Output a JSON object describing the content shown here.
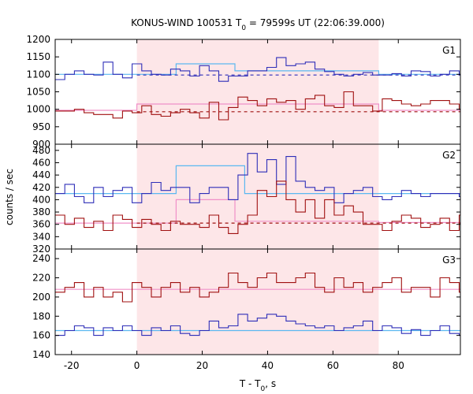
{
  "chart_data": {
    "type": "line",
    "title_prefix": "KONUS-WIND 100531 T",
    "title_sub": "0",
    "title_suffix": " = 79599s UT (22:06:39.000)",
    "xlabel_prefix": "T - T",
    "xlabel_sub": "0",
    "xlabel_suffix": ", s",
    "ylabel": "counts / sec",
    "xlim": [
      -25,
      99
    ],
    "xticks": [
      -20,
      0,
      20,
      40,
      60,
      80
    ],
    "highlight_interval": [
      0,
      74
    ],
    "colors": {
      "high_series": "#2e2eb8",
      "low_series": "#a01010",
      "high_fit": "#5bb8f0",
      "low_fit": "#f090c8",
      "highlight": "#fde6e8"
    },
    "panels": [
      {
        "label": "G1",
        "ylim": [
          900,
          1200
        ],
        "yticks": [
          900,
          950,
          1000,
          1050,
          1100,
          1150,
          1200
        ],
        "high_series": {
          "x_start": -25,
          "bin_width": 2.944,
          "values": [
            1085,
            1100,
            1110,
            1100,
            1098,
            1135,
            1100,
            1090,
            1130,
            1110,
            1100,
            1098,
            1115,
            1110,
            1095,
            1125,
            1110,
            1080,
            1095,
            1095,
            1110,
            1110,
            1120,
            1148,
            1125,
            1130,
            1135,
            1115,
            1108,
            1100,
            1095,
            1100,
            1105,
            1098,
            1098,
            1102,
            1095,
            1110,
            1108,
            1095,
            1100,
            1110,
            1098,
            1105,
            1100,
            1105,
            1080,
            1095,
            1098,
            1100,
            1110,
            1100,
            1100,
            1100,
            1080,
            1095,
            1095,
            1100,
            1100,
            1102,
            1098,
            1090,
            1075,
            1095,
            1098,
            1100,
            1100,
            1102,
            1090,
            1100,
            1102,
            1110,
            1100,
            1098,
            1100,
            1090,
            1100,
            1100,
            1105,
            1100,
            1100,
            1095,
            1098,
            1110,
            1098,
            1108,
            1120,
            1100,
            1095,
            1090,
            1100,
            1098,
            1100,
            1110,
            1100,
            1095,
            1108,
            1100,
            1080,
            1095,
            1115,
            1070,
            1100,
            1098,
            1098,
            1100,
            1100,
            1110,
            1100,
            1100,
            1105,
            1100,
            1100,
            1098,
            1100,
            1100,
            1100,
            1100,
            1100,
            1100,
            1100,
            1100,
            1100,
            1100
          ]
        },
        "high_level_before": 1100,
        "high_level_after": 1100,
        "high_fit_segments": [
          [
            -25,
            0,
            1100
          ],
          [
            0,
            12,
            1100
          ],
          [
            12,
            30,
            1130
          ],
          [
            30,
            74,
            1110
          ],
          [
            74,
            99,
            1100
          ]
        ],
        "high_dashed": [
          [
            0,
            99,
            1098
          ]
        ],
        "low_series": {
          "x_start": -25,
          "bin_width": 2.944,
          "values": [
            995,
            995,
            1000,
            990,
            985,
            985,
            975,
            995,
            990,
            1010,
            985,
            980,
            990,
            1000,
            990,
            975,
            1020,
            970,
            1005,
            1035,
            1025,
            1010,
            1030,
            1020,
            1025,
            1000,
            1030,
            1040,
            1010,
            1005,
            1050,
            1010,
            1010,
            995,
            1030,
            1025,
            1015,
            1010,
            1015,
            1025,
            1025,
            1015,
            1000,
            1020,
            990,
            1005,
            1025,
            1000,
            1020,
            1010,
            1030,
            995,
            995,
            1005,
            990,
            1000,
            1020,
            1020,
            1000,
            1005,
            1020,
            1000,
            1025,
            1025,
            1015,
            1005,
            1010,
            1020,
            1005,
            1010,
            1005,
            1000,
            1000,
            990,
            995,
            995,
            985,
            975,
            990,
            1000,
            990,
            1000,
            985,
            980,
            1005,
            995,
            990,
            1005,
            1005,
            995,
            1000,
            995,
            990,
            985,
            1000,
            1000,
            1000,
            990,
            1000,
            990,
            1000,
            995,
            1000,
            1000,
            1000,
            1000,
            1000,
            1000,
            1000,
            1000,
            1000,
            1000,
            1000,
            1000,
            1000,
            1000,
            1000,
            1000,
            1000,
            1000,
            1000,
            1000,
            1000,
            1000
          ]
        },
        "low_fit_segments": [
          [
            -25,
            0,
            997
          ],
          [
            0,
            74,
            1015
          ],
          [
            74,
            99,
            997
          ]
        ],
        "low_dashed": [
          [
            0,
            99,
            993
          ]
        ]
      },
      {
        "label": "G2",
        "ylim": [
          320,
          490
        ],
        "yticks": [
          320,
          340,
          360,
          380,
          400,
          420,
          440,
          460,
          480
        ],
        "high_series": {
          "x_start": -25,
          "bin_width": 2.944,
          "values": [
            410,
            425,
            405,
            395,
            420,
            405,
            415,
            420,
            395,
            410,
            428,
            415,
            420,
            420,
            395,
            410,
            420,
            420,
            400,
            440,
            475,
            445,
            465,
            425,
            470,
            430,
            420,
            415,
            420,
            395,
            410,
            415,
            420,
            405,
            400,
            405,
            415,
            410,
            405,
            410,
            410,
            410,
            405,
            415,
            400,
            405,
            410,
            410,
            420,
            400,
            415,
            410,
            390,
            420,
            410,
            405,
            410,
            395,
            410,
            405,
            410,
            415,
            400,
            405,
            410,
            410,
            415,
            410,
            405,
            410,
            410,
            400,
            430,
            410,
            405,
            425,
            410,
            410,
            405,
            410,
            410,
            410,
            415,
            410,
            410,
            410,
            415,
            410,
            405,
            410,
            410,
            410,
            410,
            410,
            410,
            410,
            410,
            410,
            410,
            410,
            410,
            410,
            410,
            410,
            410,
            410,
            410,
            410,
            410,
            410,
            410,
            410,
            410,
            410,
            410,
            410,
            410,
            410,
            410,
            410
          ]
        },
        "high_fit_segments": [
          [
            -25,
            0,
            410
          ],
          [
            0,
            12,
            410
          ],
          [
            12,
            33,
            455
          ],
          [
            33,
            74,
            410
          ],
          [
            74,
            99,
            410
          ]
        ],
        "low_series": {
          "x_start": -25,
          "bin_width": 2.944,
          "values": [
            375,
            360,
            370,
            355,
            365,
            350,
            375,
            368,
            355,
            368,
            360,
            350,
            365,
            360,
            360,
            355,
            375,
            355,
            345,
            360,
            375,
            415,
            405,
            430,
            400,
            380,
            400,
            370,
            400,
            375,
            390,
            380,
            360,
            360,
            350,
            365,
            375,
            370,
            355,
            360,
            370,
            350,
            375,
            365,
            360,
            365,
            375,
            355,
            370,
            380,
            360,
            375,
            355,
            365,
            365,
            365,
            360,
            370,
            360,
            350,
            365,
            360,
            355,
            365,
            370,
            355,
            360,
            370,
            355,
            365,
            360,
            350,
            355,
            350,
            345,
            355,
            365,
            360,
            350,
            365,
            375,
            355,
            365,
            375,
            350,
            360,
            345,
            360,
            350,
            360,
            355,
            340,
            360,
            365,
            350,
            355,
            350,
            360,
            355,
            360,
            360,
            360,
            360,
            360,
            360,
            360,
            360,
            360,
            360,
            360,
            360,
            360,
            360,
            360,
            360,
            360,
            360,
            360,
            360,
            360
          ]
        },
        "low_fit_segments": [
          [
            -25,
            0,
            362
          ],
          [
            0,
            12,
            362
          ],
          [
            12,
            30,
            400
          ],
          [
            30,
            74,
            365
          ],
          [
            74,
            99,
            363
          ]
        ],
        "low_dashed": [
          [
            0,
            99,
            362
          ]
        ]
      },
      {
        "label": "G3",
        "ylim": [
          140,
          250
        ],
        "yticks": [
          140,
          160,
          180,
          200,
          220,
          240
        ],
        "high_series": {
          "x_start": -25,
          "bin_width": 2.944,
          "values": [
            160,
            165,
            170,
            168,
            160,
            168,
            165,
            170,
            165,
            160,
            168,
            165,
            170,
            162,
            160,
            165,
            175,
            168,
            170,
            182,
            175,
            178,
            182,
            180,
            175,
            172,
            170,
            168,
            170,
            165,
            168,
            170,
            175,
            165,
            170,
            168,
            162,
            166,
            160,
            165,
            170,
            162,
            160,
            168,
            165,
            175,
            172,
            170,
            168,
            165,
            178,
            170,
            168,
            160,
            165,
            170,
            165,
            170,
            168,
            165,
            165,
            170,
            165,
            160,
            168,
            170,
            165,
            160,
            168,
            165,
            162,
            165,
            170,
            165,
            160,
            168,
            165,
            165,
            170,
            165,
            168,
            165,
            165,
            170,
            165,
            168,
            165,
            165,
            165,
            165,
            165,
            165,
            165,
            165,
            165,
            165,
            165,
            165,
            165,
            165,
            165,
            165,
            165,
            165,
            165,
            165,
            165,
            165,
            165,
            165,
            165,
            165,
            165,
            165,
            165,
            165,
            165,
            165,
            165,
            165
          ]
        },
        "high_fit_segments": [
          [
            -25,
            99,
            165
          ]
        ],
        "low_series": {
          "x_start": -25,
          "bin_width": 2.944,
          "values": [
            205,
            210,
            215,
            200,
            210,
            200,
            205,
            195,
            215,
            210,
            200,
            210,
            215,
            205,
            210,
            200,
            205,
            210,
            225,
            215,
            210,
            220,
            225,
            215,
            215,
            220,
            225,
            210,
            205,
            220,
            210,
            215,
            205,
            210,
            215,
            220,
            205,
            210,
            210,
            200,
            220,
            215,
            205,
            210,
            215,
            205,
            210,
            215,
            220,
            210,
            205,
            210,
            215,
            200,
            210,
            220,
            210,
            205,
            215,
            220,
            210,
            200,
            205,
            210,
            215,
            205,
            210,
            205,
            215,
            220,
            210,
            205,
            236,
            215,
            210,
            205,
            210,
            208,
            210,
            212,
            208,
            210,
            208,
            208,
            210,
            208,
            208,
            210,
            208,
            208,
            208,
            208,
            208,
            208,
            208,
            208,
            208,
            208,
            208,
            208,
            208,
            208,
            208,
            208,
            208,
            208,
            208,
            208,
            208,
            208,
            208,
            208,
            208,
            208,
            208,
            208,
            208,
            208,
            208,
            208
          ]
        },
        "low_fit_segments": [
          [
            -25,
            99,
            208
          ]
        ]
      }
    ]
  }
}
